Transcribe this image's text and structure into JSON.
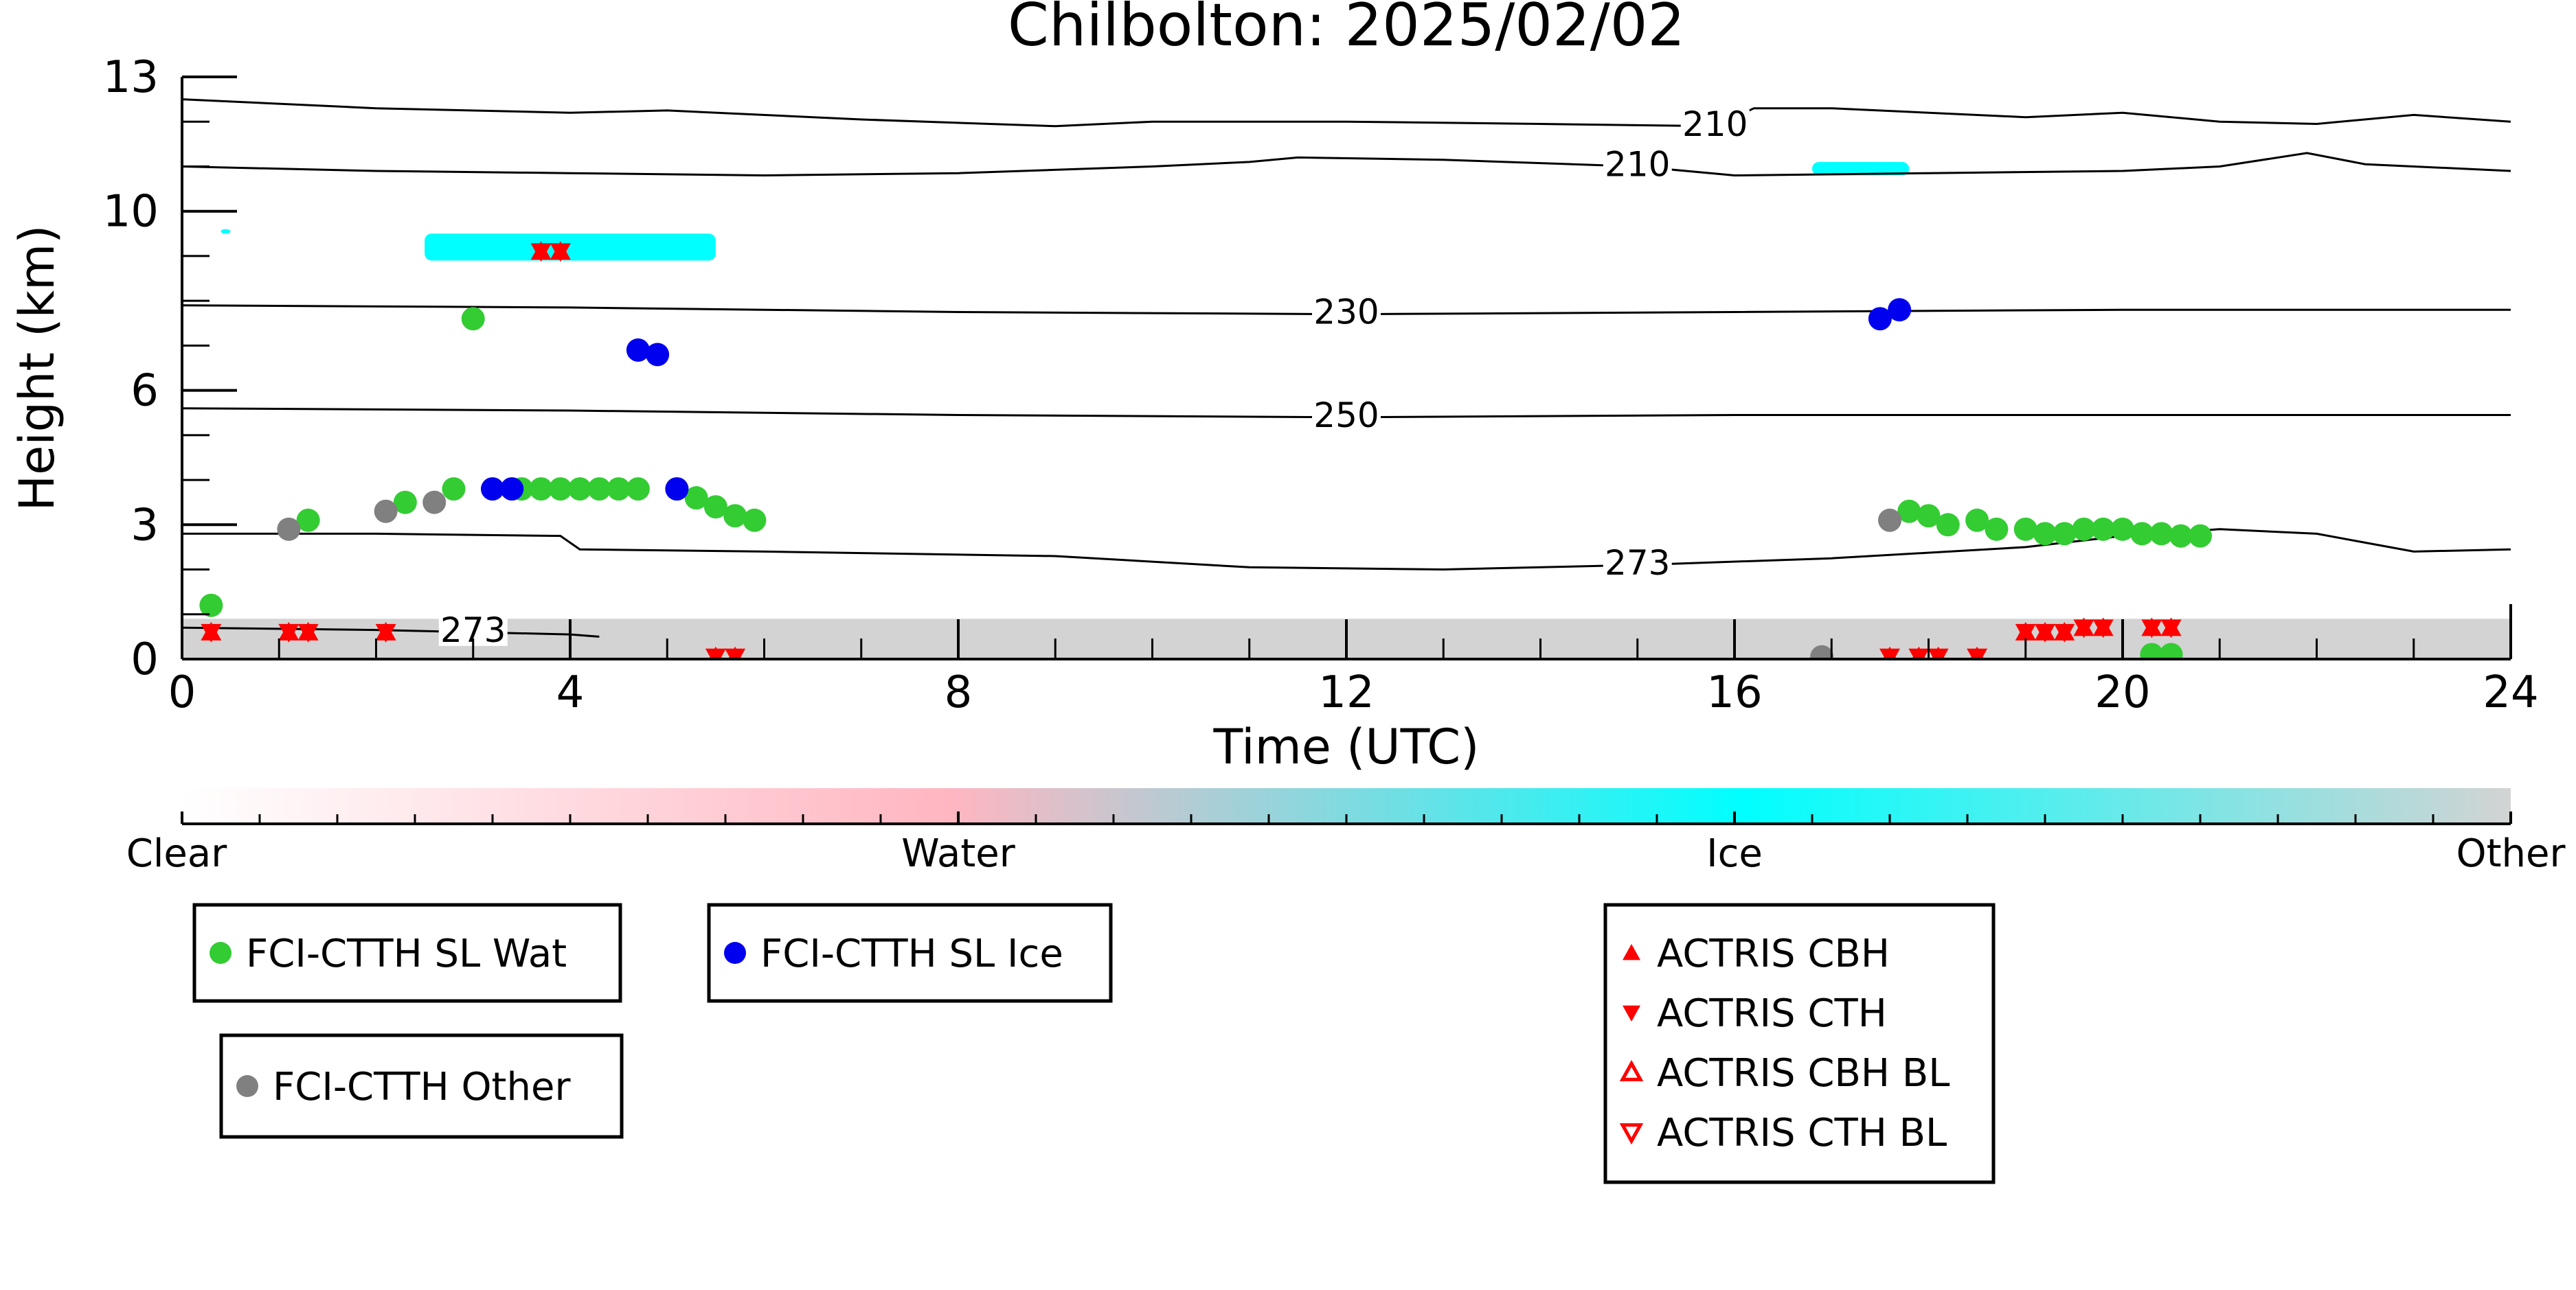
{
  "chart_data": {
    "type": "scatter",
    "title": "Chilbolton: 2025/02/02",
    "xlabel": "Time (UTC)",
    "ylabel": "Height (km)",
    "xlim": [
      0,
      24
    ],
    "ylim": [
      0,
      13
    ],
    "xticks": [
      0,
      4,
      8,
      12,
      16,
      20,
      24
    ],
    "yticks": [
      0,
      3,
      6,
      10,
      13
    ],
    "xtick_labels": [
      "0",
      "4",
      "8",
      "12",
      "16",
      "20",
      "24"
    ],
    "ytick_labels": [
      "0",
      "3",
      "6",
      "10",
      "13"
    ],
    "colorbar": {
      "labels": [
        "Clear",
        "Water",
        "Ice",
        "Other"
      ],
      "colors": [
        "#ffffff",
        "#ffb6c1",
        "#00ffff",
        "#d3d3d3"
      ]
    },
    "contours": [
      {
        "label": "210",
        "points": [
          [
            0,
            12.5
          ],
          [
            2,
            12.3
          ],
          [
            4,
            12.2
          ],
          [
            5,
            12.25
          ],
          [
            7,
            12.05
          ],
          [
            9,
            11.9
          ],
          [
            10,
            12.0
          ],
          [
            12,
            12.0
          ],
          [
            14,
            11.95
          ],
          [
            15.8,
            11.9
          ],
          [
            16.2,
            12.3
          ],
          [
            17,
            12.3
          ],
          [
            19,
            12.1
          ],
          [
            20,
            12.2
          ],
          [
            21,
            12.0
          ],
          [
            22,
            11.95
          ],
          [
            23,
            12.15
          ],
          [
            24,
            12.0
          ]
        ]
      },
      {
        "label": "210",
        "points": [
          [
            0,
            11.0
          ],
          [
            2,
            10.9
          ],
          [
            4,
            10.85
          ],
          [
            6,
            10.8
          ],
          [
            8,
            10.85
          ],
          [
            10,
            11.0
          ],
          [
            11,
            11.1
          ],
          [
            11.5,
            11.2
          ],
          [
            13,
            11.15
          ],
          [
            15,
            11.0
          ],
          [
            16,
            10.8
          ],
          [
            18,
            10.85
          ],
          [
            20,
            10.9
          ],
          [
            21,
            11.0
          ],
          [
            21.9,
            11.3
          ],
          [
            22.5,
            11.05
          ],
          [
            24,
            10.9
          ]
        ]
      },
      {
        "label": "230",
        "points": [
          [
            0,
            7.9
          ],
          [
            4,
            7.85
          ],
          [
            8,
            7.75
          ],
          [
            12,
            7.7
          ],
          [
            16,
            7.75
          ],
          [
            20,
            7.8
          ],
          [
            24,
            7.8
          ]
        ]
      },
      {
        "label": "250",
        "points": [
          [
            0,
            5.6
          ],
          [
            4,
            5.55
          ],
          [
            8,
            5.45
          ],
          [
            12,
            5.4
          ],
          [
            16,
            5.45
          ],
          [
            20,
            5.45
          ],
          [
            24,
            5.45
          ]
        ]
      },
      {
        "label": "273",
        "points": [
          [
            0,
            2.8
          ],
          [
            2,
            2.8
          ],
          [
            3.9,
            2.75
          ],
          [
            4.1,
            2.45
          ],
          [
            6,
            2.4
          ],
          [
            9,
            2.3
          ],
          [
            11,
            2.05
          ],
          [
            13,
            2.0
          ],
          [
            15,
            2.1
          ],
          [
            17,
            2.25
          ],
          [
            19,
            2.5
          ],
          [
            20,
            2.75
          ],
          [
            21,
            2.9
          ],
          [
            22,
            2.8
          ],
          [
            23,
            2.4
          ],
          [
            24,
            2.45
          ]
        ]
      },
      {
        "label": "273",
        "points": [
          [
            0,
            0.7
          ],
          [
            2,
            0.65
          ],
          [
            3,
            0.6
          ],
          [
            4,
            0.55
          ],
          [
            4.3,
            0.5
          ]
        ]
      }
    ],
    "series": [
      {
        "name": "FCI-CTTH SL Wat",
        "color": "#33cc33",
        "x": [
          0.3,
          1.3,
          2.3,
          2.8,
          3.0,
          3.5,
          3.7,
          3.9,
          4.1,
          4.3,
          4.5,
          4.7,
          5.1,
          5.3,
          5.5,
          5.7,
          5.9,
          17.8,
          18.0,
          18.2,
          18.5,
          18.7,
          19.0,
          19.2,
          19.4,
          19.6,
          19.8,
          20.0,
          20.2,
          20.4,
          20.6,
          20.8
        ],
        "y": [
          1.2,
          3.1,
          3.5,
          3.8,
          7.6,
          3.8,
          3.8,
          3.8,
          3.8,
          3.8,
          3.8,
          3.8,
          3.8,
          3.6,
          3.4,
          3.2,
          3.1,
          3.3,
          3.2,
          3.0,
          3.1,
          2.9,
          2.9,
          2.8,
          2.8,
          2.9,
          2.9,
          2.9,
          2.8,
          2.8,
          2.75,
          2.75
        ],
        "x2": [
          20.3,
          20.5
        ],
        "y2": [
          0.1,
          0.1
        ]
      },
      {
        "name": "FCI-CTTH SL Ice",
        "color": "#0000ee",
        "x": [
          3.2,
          3.4,
          4.7,
          4.9,
          5.1,
          17.5,
          17.7
        ],
        "y": [
          3.8,
          3.8,
          6.9,
          6.8,
          3.8,
          7.6,
          7.8
        ]
      },
      {
        "name": "FCI-CTTH Other",
        "color": "#808080",
        "x": [
          1.1,
          2.1,
          2.6,
          17.6,
          16.9
        ],
        "y": [
          2.9,
          3.3,
          3.5,
          3.1,
          0.05
        ]
      },
      {
        "name": "ACTRIS CBH",
        "color": "#ff0000",
        "marker": "triangle-up",
        "x": [
          0.3,
          1.1,
          1.3,
          2.1,
          3.7,
          3.9,
          5.5,
          5.7,
          17.6,
          17.9,
          18.1,
          18.5,
          19.0,
          19.2,
          19.4,
          19.6,
          19.8,
          20.3,
          20.5
        ],
        "y": [
          0.6,
          0.6,
          0.6,
          0.6,
          9.1,
          9.1,
          0.05,
          0.05,
          0.05,
          0.05,
          0.05,
          0.05,
          0.6,
          0.6,
          0.6,
          0.7,
          0.7,
          0.7,
          0.7
        ]
      },
      {
        "name": "ACTRIS CTH",
        "color": "#ff0000",
        "marker": "triangle-down",
        "x": [
          0.3,
          1.1,
          1.3,
          2.1,
          3.7,
          3.9,
          5.5,
          5.7,
          17.6,
          17.9,
          18.1,
          18.5,
          19.0,
          19.2,
          19.4,
          19.6,
          19.8,
          20.3,
          20.5
        ],
        "y": [
          0.6,
          0.6,
          0.6,
          0.6,
          9.1,
          9.1,
          0.05,
          0.05,
          0.05,
          0.05,
          0.05,
          0.05,
          0.6,
          0.6,
          0.6,
          0.7,
          0.7,
          0.7,
          0.7
        ]
      },
      {
        "name": "ACTRIS CBH BL",
        "color": "#ff0000",
        "marker": "triangle-up-open",
        "x": [],
        "y": []
      },
      {
        "name": "ACTRIS CTH BL",
        "color": "#ff0000",
        "marker": "triangle-down-open",
        "x": [],
        "y": []
      }
    ],
    "ice_cloud_patches": [
      {
        "x0": 2.5,
        "x1": 5.5,
        "y0": 8.9,
        "y1": 9.5
      },
      {
        "x0": 16.8,
        "x1": 17.8,
        "y0": 10.8,
        "y1": 11.1
      },
      {
        "x0": 0.4,
        "x1": 0.5,
        "y0": 9.5,
        "y1": 9.6
      }
    ],
    "ground_return": {
      "top_km": 0.9,
      "color": "#d3d3d3"
    },
    "legends": [
      {
        "entries": [
          "FCI-CTTH SL Wat"
        ]
      },
      {
        "entries": [
          "FCI-CTTH SL Ice"
        ]
      },
      {
        "entries": [
          "FCI-CTTH Other"
        ]
      },
      {
        "entries": [
          "ACTRIS CBH",
          "ACTRIS CTH",
          "ACTRIS CBH BL",
          "ACTRIS CTH BL"
        ]
      }
    ]
  }
}
